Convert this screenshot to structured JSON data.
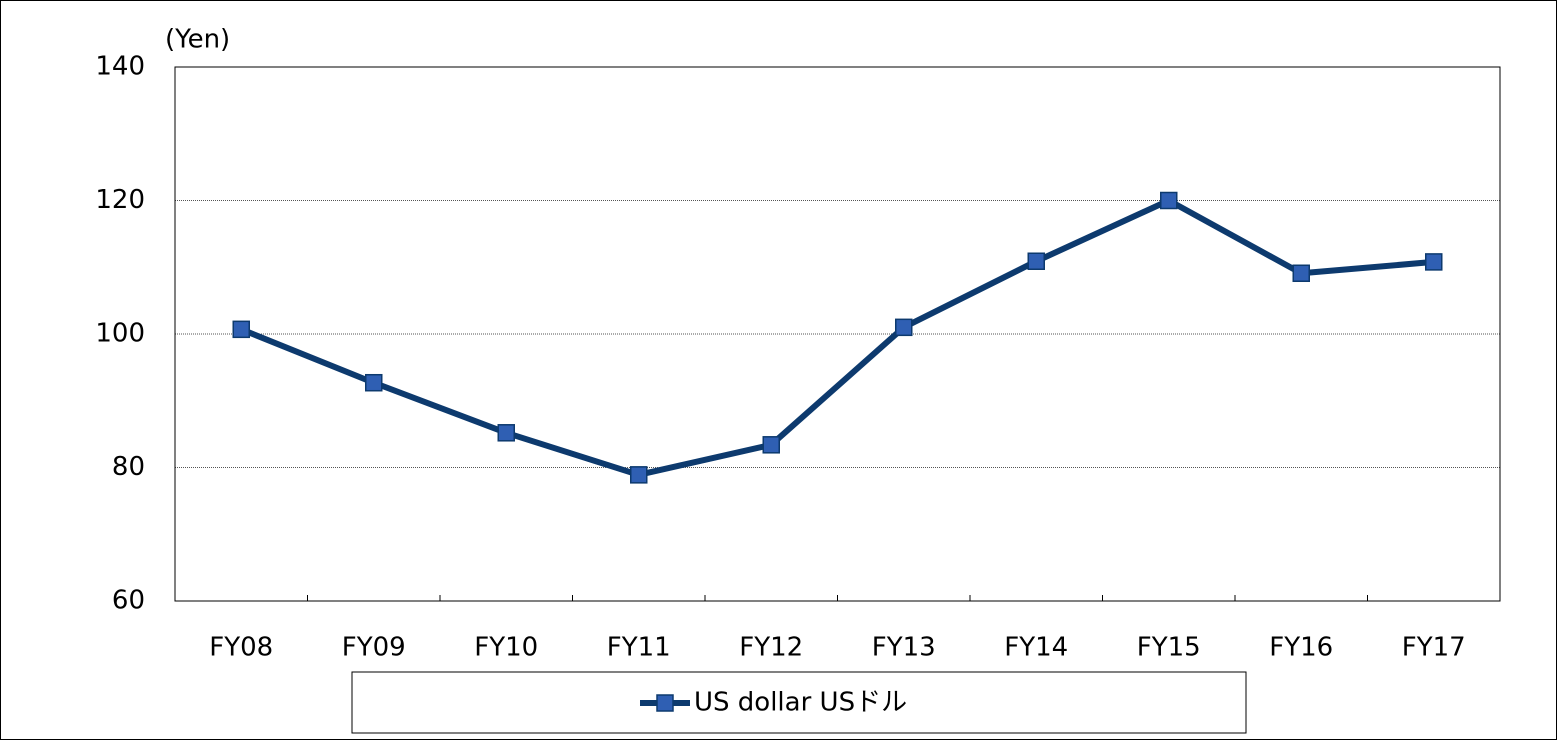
{
  "chart_data": {
    "type": "line",
    "y_axis_label": "(Yen)",
    "categories": [
      "FY08",
      "FY09",
      "FY10",
      "FY11",
      "FY12",
      "FY13",
      "FY14",
      "FY15",
      "FY16",
      "FY17"
    ],
    "series": [
      {
        "name": "US dollar USドル",
        "color": "#0d3a6e",
        "marker_color": "#2f5fb3",
        "values": [
          100.7,
          92.7,
          85.2,
          78.9,
          83.4,
          101.0,
          110.9,
          120.0,
          109.1,
          110.8
        ]
      }
    ],
    "ylim": [
      60,
      140
    ],
    "yticks": [
      60,
      80,
      100,
      120,
      140
    ],
    "grid": true,
    "legend": "bottom"
  }
}
